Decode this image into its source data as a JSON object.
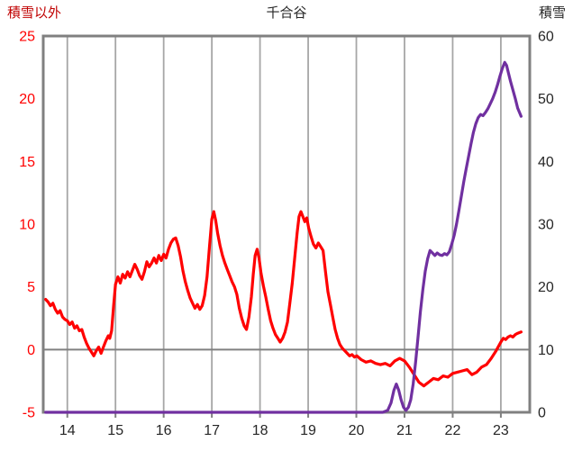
{
  "chart_data": {
    "type": "line",
    "title": "千合谷",
    "title_color": "#262626",
    "x_axis": {
      "min": 13.5,
      "max": 23.6,
      "ticks": [
        14,
        15,
        16,
        17,
        18,
        19,
        20,
        21,
        22,
        23
      ],
      "tick_color": "#262626"
    },
    "left_axis": {
      "label": "積雪以外",
      "title_color": "#c00000",
      "min": -5,
      "max": 25,
      "ticks": [
        -5,
        0,
        5,
        10,
        15,
        20,
        25
      ],
      "tick_color": "#ff0000"
    },
    "right_axis": {
      "label": "積雪",
      "title_color": "#262626",
      "min": 0,
      "max": 60,
      "ticks": [
        0,
        10,
        20,
        30,
        40,
        50,
        60
      ],
      "tick_color": "#262626"
    },
    "grid": {
      "vertical": true,
      "horizontal": false,
      "zero_line_left": true
    },
    "style": {
      "grid_color": "#a6a6a6",
      "border_color": "#808080",
      "zero_line_color": "#808080",
      "background": "#ffffff",
      "series_stroke_width": 3.2
    },
    "series": [
      {
        "name": "積雪以外",
        "axis": "left",
        "color": "#ff0000",
        "points": [
          [
            13.55,
            4.0
          ],
          [
            13.6,
            3.8
          ],
          [
            13.65,
            3.5
          ],
          [
            13.7,
            3.7
          ],
          [
            13.75,
            3.2
          ],
          [
            13.8,
            2.9
          ],
          [
            13.85,
            3.1
          ],
          [
            13.9,
            2.6
          ],
          [
            13.95,
            2.4
          ],
          [
            14.0,
            2.3
          ],
          [
            14.05,
            2.0
          ],
          [
            14.1,
            2.2
          ],
          [
            14.15,
            1.7
          ],
          [
            14.2,
            1.9
          ],
          [
            14.25,
            1.5
          ],
          [
            14.3,
            1.6
          ],
          [
            14.35,
            1.0
          ],
          [
            14.4,
            0.5
          ],
          [
            14.45,
            0.1
          ],
          [
            14.5,
            -0.2
          ],
          [
            14.55,
            -0.5
          ],
          [
            14.6,
            -0.1
          ],
          [
            14.65,
            0.2
          ],
          [
            14.7,
            -0.3
          ],
          [
            14.75,
            0.2
          ],
          [
            14.8,
            0.7
          ],
          [
            14.85,
            1.1
          ],
          [
            14.88,
            0.9
          ],
          [
            14.92,
            1.5
          ],
          [
            14.96,
            3.5
          ],
          [
            15.0,
            5.2
          ],
          [
            15.05,
            5.8
          ],
          [
            15.1,
            5.3
          ],
          [
            15.15,
            6.0
          ],
          [
            15.2,
            5.7
          ],
          [
            15.25,
            6.2
          ],
          [
            15.3,
            5.8
          ],
          [
            15.35,
            6.3
          ],
          [
            15.4,
            6.8
          ],
          [
            15.45,
            6.4
          ],
          [
            15.5,
            5.9
          ],
          [
            15.55,
            5.6
          ],
          [
            15.6,
            6.2
          ],
          [
            15.65,
            7.0
          ],
          [
            15.7,
            6.6
          ],
          [
            15.75,
            6.9
          ],
          [
            15.8,
            7.3
          ],
          [
            15.85,
            6.9
          ],
          [
            15.9,
            7.5
          ],
          [
            15.95,
            7.1
          ],
          [
            16.0,
            7.6
          ],
          [
            16.05,
            7.3
          ],
          [
            16.1,
            8.0
          ],
          [
            16.15,
            8.5
          ],
          [
            16.2,
            8.8
          ],
          [
            16.25,
            8.9
          ],
          [
            16.3,
            8.3
          ],
          [
            16.35,
            7.4
          ],
          [
            16.4,
            6.3
          ],
          [
            16.45,
            5.4
          ],
          [
            16.5,
            4.7
          ],
          [
            16.55,
            4.1
          ],
          [
            16.6,
            3.7
          ],
          [
            16.65,
            3.3
          ],
          [
            16.7,
            3.6
          ],
          [
            16.75,
            3.2
          ],
          [
            16.8,
            3.5
          ],
          [
            16.85,
            4.3
          ],
          [
            16.9,
            5.8
          ],
          [
            16.95,
            8.2
          ],
          [
            17.0,
            10.4
          ],
          [
            17.04,
            11.0
          ],
          [
            17.08,
            10.3
          ],
          [
            17.12,
            9.3
          ],
          [
            17.17,
            8.3
          ],
          [
            17.22,
            7.5
          ],
          [
            17.27,
            6.9
          ],
          [
            17.32,
            6.4
          ],
          [
            17.37,
            5.9
          ],
          [
            17.42,
            5.4
          ],
          [
            17.47,
            5.0
          ],
          [
            17.52,
            4.4
          ],
          [
            17.57,
            3.3
          ],
          [
            17.62,
            2.5
          ],
          [
            17.67,
            1.9
          ],
          [
            17.72,
            1.6
          ],
          [
            17.77,
            2.6
          ],
          [
            17.82,
            4.2
          ],
          [
            17.86,
            6.0
          ],
          [
            17.9,
            7.5
          ],
          [
            17.94,
            8.0
          ],
          [
            17.98,
            7.3
          ],
          [
            18.02,
            6.1
          ],
          [
            18.07,
            5.1
          ],
          [
            18.12,
            4.2
          ],
          [
            18.17,
            3.2
          ],
          [
            18.22,
            2.3
          ],
          [
            18.27,
            1.7
          ],
          [
            18.32,
            1.2
          ],
          [
            18.37,
            0.9
          ],
          [
            18.42,
            0.6
          ],
          [
            18.47,
            0.9
          ],
          [
            18.52,
            1.4
          ],
          [
            18.57,
            2.2
          ],
          [
            18.62,
            3.7
          ],
          [
            18.67,
            5.3
          ],
          [
            18.72,
            7.3
          ],
          [
            18.77,
            9.3
          ],
          [
            18.81,
            10.6
          ],
          [
            18.85,
            11.0
          ],
          [
            18.89,
            10.6
          ],
          [
            18.93,
            10.2
          ],
          [
            18.97,
            10.5
          ],
          [
            19.01,
            9.7
          ],
          [
            19.06,
            9.0
          ],
          [
            19.11,
            8.4
          ],
          [
            19.16,
            8.1
          ],
          [
            19.21,
            8.5
          ],
          [
            19.26,
            8.2
          ],
          [
            19.31,
            7.9
          ],
          [
            19.36,
            6.2
          ],
          [
            19.41,
            4.6
          ],
          [
            19.46,
            3.6
          ],
          [
            19.51,
            2.6
          ],
          [
            19.56,
            1.6
          ],
          [
            19.61,
            0.9
          ],
          [
            19.66,
            0.4
          ],
          [
            19.71,
            0.1
          ],
          [
            19.76,
            -0.1
          ],
          [
            19.81,
            -0.3
          ],
          [
            19.86,
            -0.5
          ],
          [
            19.91,
            -0.4
          ],
          [
            19.96,
            -0.6
          ],
          [
            20.01,
            -0.5
          ],
          [
            20.1,
            -0.8
          ],
          [
            20.2,
            -1.0
          ],
          [
            20.3,
            -0.9
          ],
          [
            20.4,
            -1.1
          ],
          [
            20.5,
            -1.2
          ],
          [
            20.6,
            -1.1
          ],
          [
            20.7,
            -1.3
          ],
          [
            20.8,
            -0.9
          ],
          [
            20.9,
            -0.7
          ],
          [
            21.0,
            -0.9
          ],
          [
            21.1,
            -1.4
          ],
          [
            21.2,
            -2.0
          ],
          [
            21.3,
            -2.6
          ],
          [
            21.4,
            -2.9
          ],
          [
            21.5,
            -2.6
          ],
          [
            21.6,
            -2.3
          ],
          [
            21.7,
            -2.4
          ],
          [
            21.8,
            -2.1
          ],
          [
            21.9,
            -2.2
          ],
          [
            22.0,
            -1.9
          ],
          [
            22.1,
            -1.8
          ],
          [
            22.2,
            -1.7
          ],
          [
            22.3,
            -1.6
          ],
          [
            22.4,
            -2.0
          ],
          [
            22.5,
            -1.8
          ],
          [
            22.6,
            -1.4
          ],
          [
            22.7,
            -1.2
          ],
          [
            22.8,
            -0.7
          ],
          [
            22.9,
            -0.1
          ],
          [
            23.0,
            0.6
          ],
          [
            23.05,
            0.9
          ],
          [
            23.1,
            0.8
          ],
          [
            23.15,
            1.0
          ],
          [
            23.2,
            1.1
          ],
          [
            23.25,
            1.0
          ],
          [
            23.3,
            1.2
          ],
          [
            23.35,
            1.3
          ],
          [
            23.42,
            1.4
          ]
        ]
      },
      {
        "name": "積雪",
        "axis": "right",
        "color": "#7030a0",
        "points": [
          [
            13.55,
            0
          ],
          [
            15.0,
            0
          ],
          [
            16.0,
            0
          ],
          [
            17.0,
            0
          ],
          [
            18.0,
            0
          ],
          [
            19.0,
            0
          ],
          [
            20.0,
            0
          ],
          [
            20.55,
            0
          ],
          [
            20.65,
            0.3
          ],
          [
            20.72,
            1.5
          ],
          [
            20.78,
            3.5
          ],
          [
            20.83,
            4.5
          ],
          [
            20.88,
            3.5
          ],
          [
            20.93,
            2.0
          ],
          [
            20.98,
            0.8
          ],
          [
            21.03,
            0.3
          ],
          [
            21.08,
            0.8
          ],
          [
            21.13,
            2.0
          ],
          [
            21.18,
            4.5
          ],
          [
            21.23,
            8.0
          ],
          [
            21.28,
            12.0
          ],
          [
            21.33,
            16.0
          ],
          [
            21.38,
            19.5
          ],
          [
            21.43,
            22.5
          ],
          [
            21.48,
            24.5
          ],
          [
            21.53,
            25.8
          ],
          [
            21.58,
            25.4
          ],
          [
            21.63,
            25.0
          ],
          [
            21.68,
            25.4
          ],
          [
            21.73,
            25.1
          ],
          [
            21.78,
            25.0
          ],
          [
            21.83,
            25.3
          ],
          [
            21.88,
            25.1
          ],
          [
            21.93,
            25.6
          ],
          [
            21.98,
            26.8
          ],
          [
            22.03,
            28.2
          ],
          [
            22.08,
            30.0
          ],
          [
            22.13,
            32.2
          ],
          [
            22.18,
            34.5
          ],
          [
            22.23,
            36.8
          ],
          [
            22.28,
            38.8
          ],
          [
            22.33,
            40.8
          ],
          [
            22.38,
            42.8
          ],
          [
            22.43,
            44.6
          ],
          [
            22.48,
            46.0
          ],
          [
            22.53,
            47.0
          ],
          [
            22.58,
            47.5
          ],
          [
            22.63,
            47.3
          ],
          [
            22.68,
            47.8
          ],
          [
            22.73,
            48.4
          ],
          [
            22.78,
            49.2
          ],
          [
            22.83,
            50.0
          ],
          [
            22.88,
            51.0
          ],
          [
            22.93,
            52.2
          ],
          [
            22.98,
            53.6
          ],
          [
            23.03,
            54.8
          ],
          [
            23.08,
            55.8
          ],
          [
            23.12,
            55.3
          ],
          [
            23.16,
            54.0
          ],
          [
            23.2,
            52.8
          ],
          [
            23.25,
            51.4
          ],
          [
            23.3,
            50.0
          ],
          [
            23.35,
            48.5
          ],
          [
            23.42,
            47.2
          ]
        ]
      }
    ]
  }
}
